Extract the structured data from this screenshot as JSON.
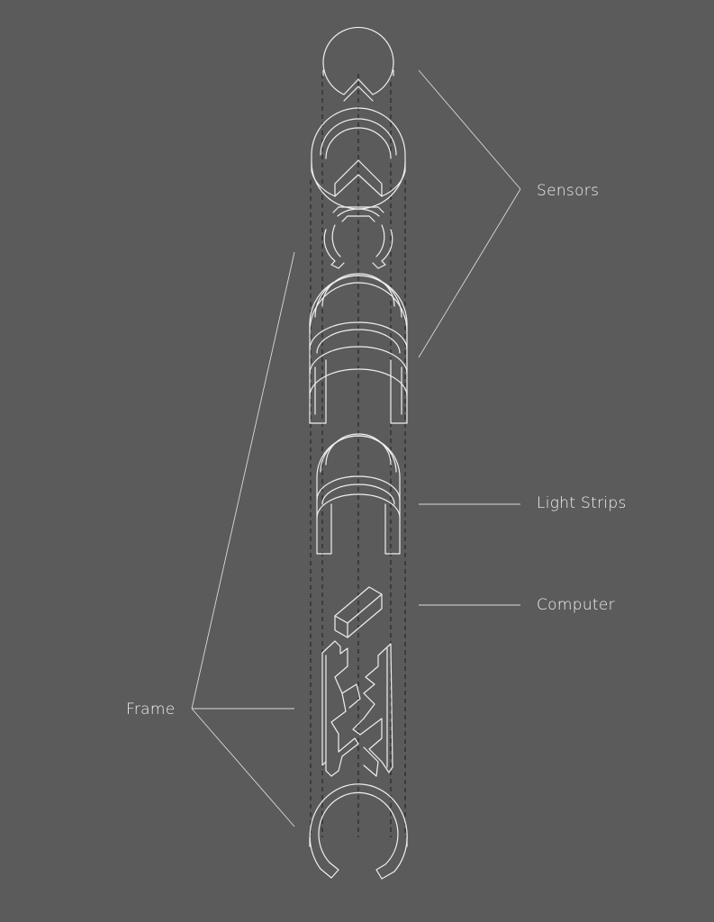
{
  "labels": {
    "sensors": "Sensors",
    "light_strips": "Light Strips",
    "computer": "Computer",
    "frame": "Frame"
  },
  "colors": {
    "background": "#5b5b5b",
    "linework": "#efefef",
    "axis_dashes": "#1e1e1e"
  }
}
